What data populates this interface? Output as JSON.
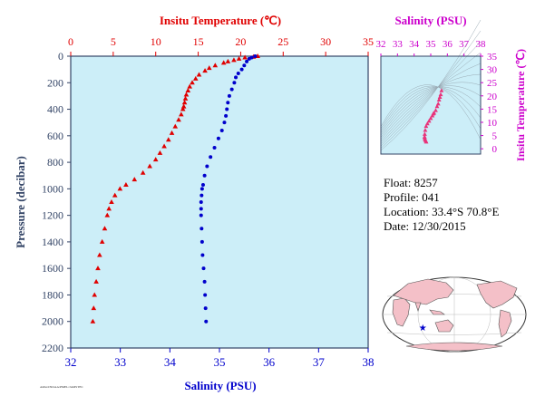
{
  "colors": {
    "temperature": "#e00000",
    "salinity": "#0000cc",
    "ts_axis": "#cc00cc",
    "plot_bg": "#cceef8",
    "pressure_axis": "#334466",
    "land": "#f4c0c8",
    "ocean": "#ffffff",
    "float_marker": "#0000cc"
  },
  "main_plot": {
    "top_title": "Insitu Temperature (℃)",
    "bottom_title": "Salinity (PSU)",
    "left_title": "Pressure (decibar)",
    "temp_ticks": [
      "0",
      "5",
      "10",
      "15",
      "20",
      "25",
      "30",
      "35"
    ],
    "sal_ticks": [
      "32",
      "33",
      "34",
      "35",
      "36",
      "37",
      "38"
    ],
    "pressure_ticks": [
      "0",
      "200",
      "400",
      "600",
      "800",
      "1000",
      "1200",
      "1400",
      "1600",
      "1800",
      "2000",
      "2200"
    ]
  },
  "ts_plot": {
    "title": "Salinity (PSU)",
    "right_title": "Insitu Temperature (℃)",
    "sal_ticks": [
      "32",
      "33",
      "34",
      "35",
      "36",
      "37",
      "38"
    ],
    "temp_ticks": [
      "0",
      "5",
      "10",
      "15",
      "20",
      "25",
      "30",
      "35"
    ]
  },
  "info": {
    "float": "Float:  8257",
    "profile": "Profile:  041",
    "location": "Location:  33.4°S  70.8°E",
    "date": "Date:  12/30/2015"
  },
  "footer": {
    "small_text": "ARGO/NOAA/PMEL/JAMSTEC"
  },
  "map": {
    "label": "",
    "float_lon": 70.8,
    "float_lat": -33.4
  },
  "chart_data": [
    {
      "type": "line",
      "name": "Temperature profile",
      "xlabel": "Insitu Temperature (℃)",
      "ylabel": "Pressure (decibar)",
      "xlim": [
        0,
        35
      ],
      "ylim": [
        2200,
        0
      ],
      "points": [
        [
          22.0,
          0
        ],
        [
          21.5,
          5
        ],
        [
          20.5,
          10
        ],
        [
          19.8,
          20
        ],
        [
          19.2,
          30
        ],
        [
          18.5,
          40
        ],
        [
          18.0,
          50
        ],
        [
          17.0,
          70
        ],
        [
          16.3,
          90
        ],
        [
          15.8,
          110
        ],
        [
          15.1,
          140
        ],
        [
          14.7,
          170
        ],
        [
          14.3,
          200
        ],
        [
          14.0,
          230
        ],
        [
          13.8,
          260
        ],
        [
          13.6,
          290
        ],
        [
          13.5,
          320
        ],
        [
          13.4,
          350
        ],
        [
          13.3,
          380
        ],
        [
          13.2,
          400
        ],
        [
          13.0,
          440
        ],
        [
          12.7,
          480
        ],
        [
          12.3,
          530
        ],
        [
          11.9,
          580
        ],
        [
          11.5,
          630
        ],
        [
          11.0,
          680
        ],
        [
          10.5,
          730
        ],
        [
          10.0,
          780
        ],
        [
          9.3,
          830
        ],
        [
          8.5,
          880
        ],
        [
          7.5,
          930
        ],
        [
          6.5,
          970
        ],
        [
          5.8,
          1000
        ],
        [
          5.2,
          1050
        ],
        [
          4.8,
          1100
        ],
        [
          4.5,
          1150
        ],
        [
          4.3,
          1200
        ],
        [
          4.0,
          1300
        ],
        [
          3.7,
          1400
        ],
        [
          3.4,
          1500
        ],
        [
          3.2,
          1600
        ],
        [
          3.0,
          1700
        ],
        [
          2.8,
          1800
        ],
        [
          2.7,
          1900
        ],
        [
          2.6,
          2000
        ]
      ]
    },
    {
      "type": "line",
      "name": "Salinity profile",
      "xlabel": "Salinity (PSU)",
      "ylabel": "Pressure (decibar)",
      "xlim": [
        32,
        38
      ],
      "ylim": [
        2200,
        0
      ],
      "points": [
        [
          35.72,
          0
        ],
        [
          35.65,
          10
        ],
        [
          35.6,
          20
        ],
        [
          35.55,
          40
        ],
        [
          35.5,
          70
        ],
        [
          35.45,
          100
        ],
        [
          35.38,
          130
        ],
        [
          35.33,
          160
        ],
        [
          35.3,
          200
        ],
        [
          35.25,
          250
        ],
        [
          35.2,
          300
        ],
        [
          35.17,
          350
        ],
        [
          35.15,
          400
        ],
        [
          35.13,
          450
        ],
        [
          35.1,
          500
        ],
        [
          35.05,
          560
        ],
        [
          34.98,
          620
        ],
        [
          34.9,
          690
        ],
        [
          34.82,
          760
        ],
        [
          34.75,
          830
        ],
        [
          34.7,
          900
        ],
        [
          34.67,
          970
        ],
        [
          34.65,
          1000
        ],
        [
          34.64,
          1050
        ],
        [
          34.63,
          1100
        ],
        [
          34.63,
          1150
        ],
        [
          34.63,
          1200
        ],
        [
          34.64,
          1300
        ],
        [
          34.65,
          1400
        ],
        [
          34.66,
          1500
        ],
        [
          34.68,
          1600
        ],
        [
          34.7,
          1700
        ],
        [
          34.71,
          1800
        ],
        [
          34.72,
          1900
        ],
        [
          34.73,
          2000
        ]
      ]
    },
    {
      "type": "scatter",
      "name": "T-S diagram",
      "xlabel": "Salinity (PSU)",
      "ylabel": "Insitu Temperature (℃)",
      "xlim": [
        32,
        38
      ],
      "ylim": [
        -2,
        35
      ],
      "points": [
        [
          35.65,
          22.0
        ],
        [
          35.6,
          20.5
        ],
        [
          35.55,
          19.5
        ],
        [
          35.5,
          18.5
        ],
        [
          35.45,
          17.0
        ],
        [
          35.38,
          16.0
        ],
        [
          35.3,
          14.5
        ],
        [
          35.2,
          13.5
        ],
        [
          35.15,
          13.2
        ],
        [
          35.1,
          12.5
        ],
        [
          35.0,
          11.5
        ],
        [
          34.9,
          10.5
        ],
        [
          34.8,
          9.5
        ],
        [
          34.72,
          8.5
        ],
        [
          34.67,
          7.0
        ],
        [
          34.64,
          5.5
        ],
        [
          34.63,
          4.5
        ],
        [
          34.64,
          4.0
        ],
        [
          34.66,
          3.4
        ],
        [
          34.7,
          3.0
        ],
        [
          34.73,
          2.6
        ]
      ]
    }
  ]
}
